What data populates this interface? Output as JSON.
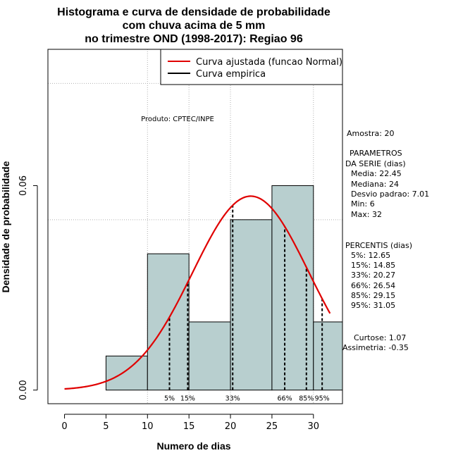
{
  "chart_data": {
    "type": "bar",
    "title_lines": [
      "Histograma e curva de densidade de probabilidade",
      "com chuva acima de 5 mm",
      "no trimestre OND (1998-2017): Regiao 96"
    ],
    "xlabel": "Numero de dias",
    "ylabel": "Densidade de probabilidade",
    "xlim": [
      -2,
      33.5
    ],
    "ylim": [
      -0.004,
      0.1
    ],
    "x_ticks": [
      0,
      5,
      10,
      15,
      20,
      25,
      30
    ],
    "x_tick_labels": [
      "0",
      "5",
      "10",
      "15",
      "20",
      "25",
      "30"
    ],
    "y_ticks": [
      0.0,
      0.06
    ],
    "y_tick_labels": [
      "0.00",
      "0.06"
    ],
    "grid": true,
    "grid_x": [
      10,
      15,
      20,
      30
    ],
    "grid_y": [
      0.05,
      0.09
    ],
    "bins": [
      {
        "start": 5,
        "end": 10,
        "density": 0.01
      },
      {
        "start": 10,
        "end": 15,
        "density": 0.04
      },
      {
        "start": 15,
        "end": 20,
        "density": 0.02
      },
      {
        "start": 20,
        "end": 25,
        "density": 0.05
      },
      {
        "start": 25,
        "end": 30,
        "density": 0.06
      },
      {
        "start": 30,
        "end": 35,
        "density": 0.02
      }
    ],
    "bar_color": "#b8cfcf",
    "fitted_curve": {
      "name": "Curva ajustada (funcao Normal)",
      "mean": 22.45,
      "sd": 7.01,
      "x_range": [
        0,
        32
      ],
      "color": "#e00000"
    },
    "empirical_curve": {
      "name": "Curva empirica",
      "color": "#000000"
    },
    "legend_position": "top-right",
    "product_note": "Produto: CPTEC/INPE",
    "percentile_lines": [
      {
        "label": "5%",
        "x": 12.65
      },
      {
        "label": "15%",
        "x": 14.85
      },
      {
        "label": "33%",
        "x": 20.27
      },
      {
        "label": "66%",
        "x": 26.54
      },
      {
        "label": "85%",
        "x": 29.15
      },
      {
        "label": "95%",
        "x": 31.05
      }
    ]
  },
  "side_panel": {
    "sample": "Amostra: 20",
    "params_header_1": "PARAMETROS",
    "params_header_2": "DA SERIE (dias)",
    "params": [
      "Media: 22.45",
      "Mediana: 24",
      "Desvio padrao: 7.01",
      "Min: 6",
      "Max: 32"
    ],
    "percentiles_header": "PERCENTIS (dias)",
    "percentiles": [
      "5%: 12.65",
      "15%: 14.85",
      "33%: 20.27",
      "66%: 26.54",
      "85%: 29.15",
      "95%: 31.05"
    ],
    "kurtosis": "Curtose: 1.07",
    "skewness": "Assimetria: -0.35"
  }
}
